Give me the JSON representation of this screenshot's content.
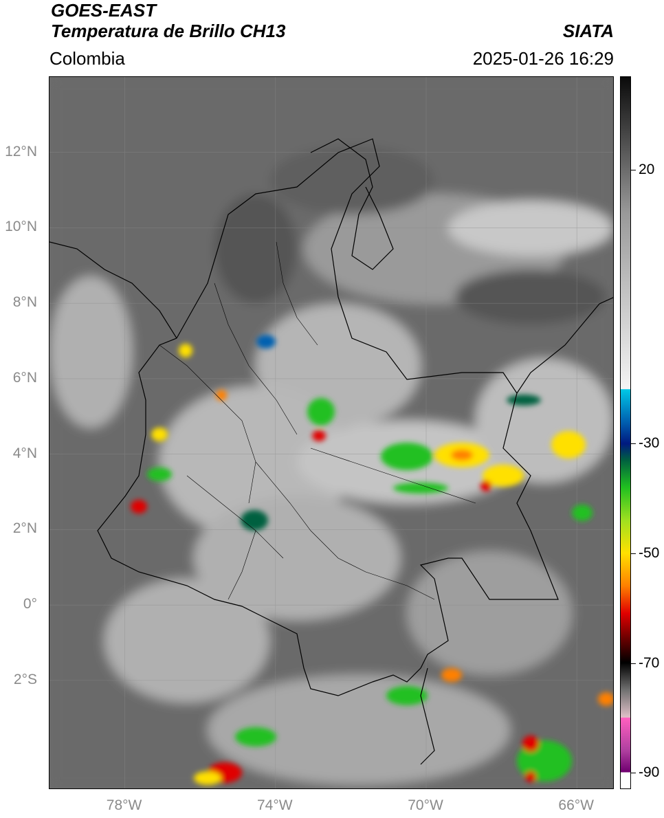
{
  "header": {
    "satellite": "GOES-EAST",
    "product": "Temperatura de Brillo CH13",
    "region": "Colombia",
    "source": "SIATA",
    "datetime": "2025-01-26 16:29"
  },
  "axes": {
    "lat_labels": [
      "12°N",
      "10°N",
      "8°N",
      "6°N",
      "4°N",
      "2°N",
      "0°",
      "2°S"
    ],
    "lat_values": [
      12,
      10,
      8,
      6,
      4,
      2,
      0,
      -2
    ],
    "lon_labels": [
      "78°W",
      "74°W",
      "70°W",
      "66°W"
    ],
    "lon_values": [
      -78,
      -74,
      -70,
      -66
    ],
    "lat_range": [
      -4.9,
      14.0
    ],
    "lon_range": [
      -80.0,
      -65.0
    ]
  },
  "colorbar": {
    "range": [
      -93,
      37
    ],
    "tick_labels": [
      "20",
      "-30",
      "-50",
      "-70",
      "-90"
    ],
    "tick_values": [
      20,
      -30,
      -50,
      -70,
      -90
    ],
    "stops": [
      {
        "v": 37,
        "c": "#0a0a0a"
      },
      {
        "v": 12,
        "c": "#9a9a9a"
      },
      {
        "v": -20,
        "c": "#f4f4f4"
      },
      {
        "v": -20.1,
        "c": "#00c8e6"
      },
      {
        "v": -26,
        "c": "#0060b0"
      },
      {
        "v": -30,
        "c": "#001a80"
      },
      {
        "v": -33,
        "c": "#006040"
      },
      {
        "v": -38,
        "c": "#20c020"
      },
      {
        "v": -44,
        "c": "#a0e020"
      },
      {
        "v": -50,
        "c": "#ffe000"
      },
      {
        "v": -56,
        "c": "#ff8000"
      },
      {
        "v": -61,
        "c": "#e00000"
      },
      {
        "v": -66,
        "c": "#600000"
      },
      {
        "v": -70,
        "c": "#000000"
      },
      {
        "v": -75,
        "c": "#707070"
      },
      {
        "v": -80,
        "c": "#e0c0c8"
      },
      {
        "v": -80.1,
        "c": "#ff60c0"
      },
      {
        "v": -86,
        "c": "#b040a0"
      },
      {
        "v": -90,
        "c": "#700070"
      },
      {
        "v": -90.1,
        "c": "#ffffff"
      },
      {
        "v": -93,
        "c": "#ffffff"
      }
    ]
  },
  "map": {
    "background_color": "#6b6b6b",
    "gridline_color": "#8c8c8c",
    "border_color": "#000000"
  }
}
